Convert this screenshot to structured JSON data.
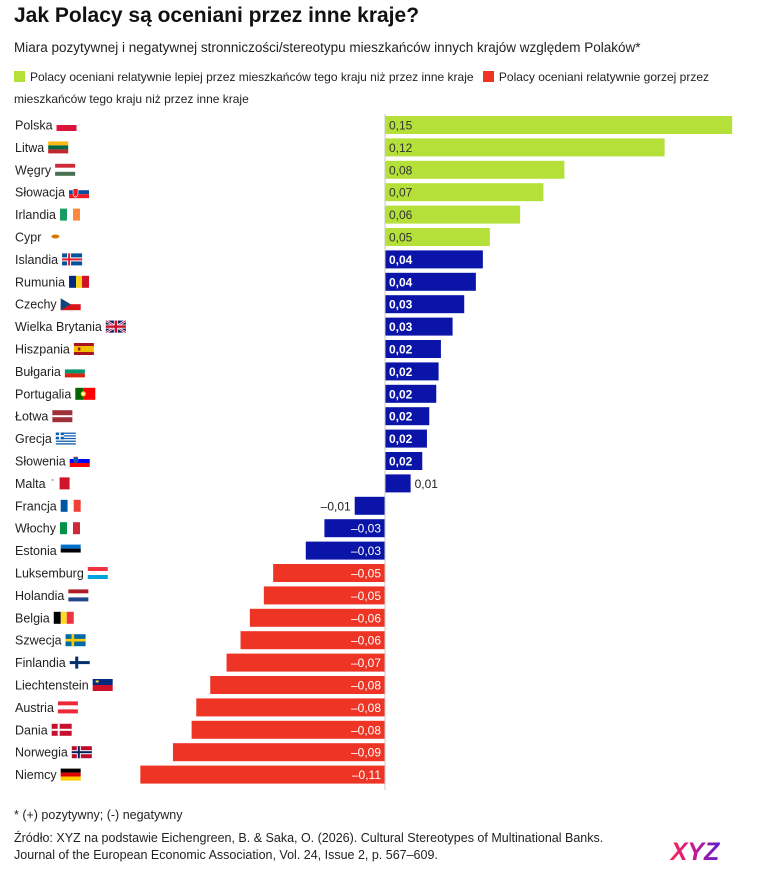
{
  "title": "Jak Polacy są oceniani przez inne kraje?",
  "subtitle": "Miara pozytywnej i negatywnej stronniczości/stereotypu mieszkańców innych krajów względem Polaków*",
  "legend": {
    "positive_label": "Polacy oceniani relatywnie lepiej przez mieszkańców tego kraju niż przez inne kraje",
    "negative_label": "Polacy oceniani relatywnie gorzej przez mieszkańców tego kraju niż przez inne kraje"
  },
  "colors": {
    "positive": "#b5e03a",
    "negative": "#ee3424",
    "neutral": "#0a14a8",
    "axis": "#c9c9c9"
  },
  "chart_data": {
    "type": "bar",
    "orientation": "horizontal",
    "xlim": [
      -0.12,
      0.16
    ],
    "categories": [
      "Polska",
      "Litwa",
      "Węgry",
      "Słowacja",
      "Irlandia",
      "Cypr",
      "Islandia",
      "Rumunia",
      "Czechy",
      "Wielka Brytania",
      "Hiszpania",
      "Bułgaria",
      "Portugalia",
      "Łotwa",
      "Grecja",
      "Słowenia",
      "Malta",
      "Francja",
      "Włochy",
      "Estonia",
      "Luksemburg",
      "Holandia",
      "Belgia",
      "Szwecja",
      "Finlandia",
      "Liechtenstein",
      "Austria",
      "Dania",
      "Norwegia",
      "Niemcy"
    ],
    "values": [
      0.149,
      0.12,
      0.077,
      0.068,
      0.058,
      0.045,
      0.042,
      0.039,
      0.034,
      0.029,
      0.024,
      0.023,
      0.022,
      0.019,
      0.018,
      0.016,
      0.011,
      -0.013,
      -0.026,
      -0.034,
      -0.048,
      -0.052,
      -0.058,
      -0.062,
      -0.068,
      -0.075,
      -0.081,
      -0.083,
      -0.091,
      -0.105
    ],
    "labels": [
      "0,15",
      "0,12",
      "0,08",
      "0,07",
      "0,06",
      "0,05",
      "0,04",
      "0,04",
      "0,03",
      "0,03",
      "0,02",
      "0,02",
      "0,02",
      "0,02",
      "0,02",
      "0,02",
      "0,01",
      "–0,01",
      "–0,03",
      "–0,03",
      "–0,05",
      "–0,05",
      "–0,06",
      "–0,06",
      "–0,07",
      "–0,08",
      "–0,08",
      "–0,08",
      "–0,09",
      "–0,11"
    ],
    "groups": [
      "positive",
      "positive",
      "positive",
      "positive",
      "positive",
      "positive",
      "neutral",
      "neutral",
      "neutral",
      "neutral",
      "neutral",
      "neutral",
      "neutral",
      "neutral",
      "neutral",
      "neutral",
      "neutral",
      "neutral",
      "neutral",
      "neutral",
      "negative",
      "negative",
      "negative",
      "negative",
      "negative",
      "negative",
      "negative",
      "negative",
      "negative",
      "negative"
    ],
    "flags": [
      "flag-pl",
      "flag-lt",
      "flag-hu",
      "flag-sk",
      "flag-ie",
      "flag-cy",
      "flag-is",
      "flag-ro",
      "flag-cz",
      "flag-gb",
      "flag-es",
      "flag-bg",
      "flag-pt",
      "flag-lv",
      "flag-gr",
      "flag-si",
      "flag-mt",
      "flag-fr",
      "flag-it",
      "flag-ee",
      "flag-lu",
      "flag-nl",
      "flag-be",
      "flag-se",
      "flag-fi",
      "flag-li",
      "flag-at",
      "flag-dk",
      "flag-no",
      "flag-de"
    ]
  },
  "footnote": "* (+) pozytywny; (-) negatywny",
  "source": "Źródło: XYZ na podstawie Eichengreen, B. & Saka, O. (2026). Cultural Stereotypes of Multinational Banks. Journal of the European Economic Association, Vol. 24, Issue 2, p. 567–609.",
  "logo_text": "XYZ"
}
